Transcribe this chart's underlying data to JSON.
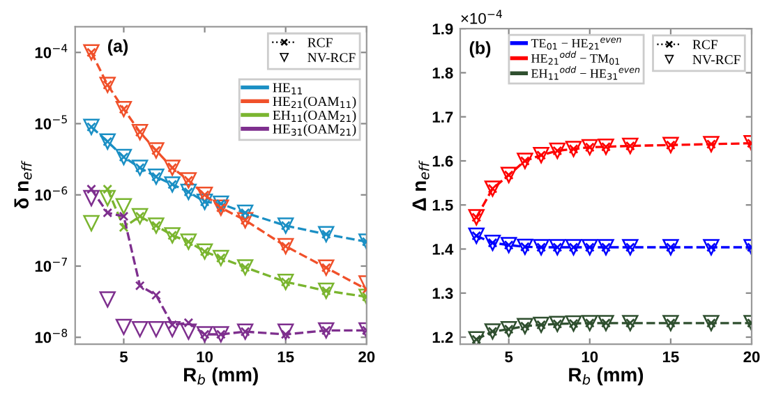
{
  "chart_data": [
    {
      "type": "line",
      "title": "(a)",
      "xlabel": "R$_{b}$ (mm)",
      "ylabel": "δ n$_{eff}$",
      "log": "y",
      "x": [
        3,
        4,
        5,
        6,
        7,
        8,
        9,
        10,
        11,
        12.5,
        15,
        17.5,
        20
      ],
      "xlim": [
        2,
        20
      ],
      "xticks": [
        5,
        10,
        15,
        20
      ],
      "ylim": [
        8e-09,
        0.00023
      ],
      "yticks": [
        {
          "value": 1e-08,
          "label": "10$^{−8}$"
        },
        {
          "value": 1e-07,
          "label": "10$^{−7}$"
        },
        {
          "value": 1e-06,
          "label": "10$^{−6}$"
        },
        {
          "value": 1e-05,
          "label": "10$^{−5}$"
        },
        {
          "value": 0.0001,
          "label": "10$^{−4}$"
        }
      ],
      "legend": "top right",
      "annotations": [
        "RCF",
        "NV-RCF"
      ],
      "series": [
        {
          "name": "HE$_{11}$",
          "marker": "cross",
          "line_style": "dashed",
          "color": "#1a8fc4",
          "values": [
            9e-06,
            5.6e-06,
            3.4e-06,
            2.4e-06,
            1.8e-06,
            1.4e-06,
            1.1e-06,
            8e-07,
            7.5e-07,
            5.6e-07,
            3.7e-07,
            2.8e-07,
            2.2e-07
          ]
        },
        {
          "name": "HE$_{21}$(OAM$_{11}$)",
          "marker": "cross",
          "line_style": "dashed",
          "color": "#f0502a",
          "values": [
            0.0001,
            3.5e-05,
            1.6e-05,
            7.6e-06,
            4.2e-06,
            2.4e-06,
            1.6e-06,
            1e-06,
            6.6e-07,
            4.4e-07,
            1.9e-07,
            9.5e-08,
            4.7e-08
          ]
        },
        {
          "name": "EH$_{11}$(OAM$_{21}$)",
          "marker": "cross",
          "line_style": "dashed",
          "color": "#7ab52f",
          "values": [
            null,
            1.2e-06,
            3.5e-07,
            5e-07,
            3.7e-07,
            2.7e-07,
            2.2e-07,
            1.6e-07,
            1.3e-07,
            9.6e-08,
            6e-08,
            4.5e-08,
            3.7e-08
          ]
        },
        {
          "name": "HE$_{31}$(OAM$_{21}$)",
          "marker": "cross",
          "line_style": "dashed",
          "color": "#7e2f8e",
          "values": [
            1.2e-06,
            5.6e-07,
            5e-07,
            5.3e-08,
            3.9e-08,
            1.5e-08,
            1.6e-08,
            1.1e-08,
            1.1e-08,
            1.2e-08,
            1.1e-08,
            1.25e-08,
            1.25e-08
          ]
        },
        {
          "type": "scatter",
          "marker": "triangle",
          "color": "#1a8fc4",
          "values": [
            9e-06,
            5.6e-06,
            3.4e-06,
            2.4e-06,
            1.8e-06,
            1.4e-06,
            1.1e-06,
            8e-07,
            7.5e-07,
            5.6e-07,
            3.7e-07,
            2.8e-07,
            2.2e-07
          ]
        },
        {
          "type": "scatter",
          "marker": "triangle",
          "color": "#f0502a",
          "values": [
            0.0001,
            3.5e-05,
            1.6e-05,
            7.6e-06,
            4.2e-06,
            2.4e-06,
            1.6e-06,
            1e-06,
            6.6e-07,
            4.4e-07,
            1.9e-07,
            9.5e-08,
            5.7e-08
          ]
        },
        {
          "type": "scatter",
          "marker": "triangle",
          "color": "#7ab52f",
          "values": [
            4e-07,
            9e-07,
            6.9e-07,
            5e-07,
            3.7e-07,
            2.7e-07,
            2.2e-07,
            1.6e-07,
            1.3e-07,
            9.6e-08,
            6e-08,
            4.5e-08,
            3.7e-08
          ]
        },
        {
          "type": "scatter",
          "marker": "triangle",
          "color": "#7e2f8e",
          "values": [
            9e-07,
            3.4e-08,
            1.4e-08,
            1.3e-08,
            1.3e-08,
            1.3e-08,
            1.2e-08,
            1.1e-08,
            1.1e-08,
            1.2e-08,
            1.2e-08,
            1.25e-08,
            1.25e-08
          ]
        }
      ]
    },
    {
      "type": "line",
      "title": "(b)",
      "xlabel": "R$_{b}$ (mm)",
      "ylabel": "Δ n$_{eff}$",
      "x": [
        3,
        4,
        5,
        6,
        7,
        8,
        9,
        10,
        11,
        12.5,
        15,
        17.5,
        20
      ],
      "xlim": [
        2,
        20
      ],
      "xticks": [
        5,
        10,
        15,
        20
      ],
      "ylim": [
        1.184,
        1.9
      ],
      "yticks": [
        1.2,
        1.3,
        1.4,
        1.5,
        1.6,
        1.7,
        1.8,
        1.9
      ],
      "legend": "top",
      "annotations": [
        "×10$^{−4}$",
        "RCF",
        "NV-RCF"
      ],
      "series": [
        {
          "name": "TE$_{01}$ − HE$_{21}$$^{even}$",
          "marker": "cross",
          "line_style": "dashed",
          "color": "#0000ff",
          "values": [
            1.43,
            1.414,
            1.409,
            1.405,
            1.404,
            1.404,
            1.404,
            1.404,
            1.404,
            1.404,
            1.404,
            1.404,
            1.404
          ]
        },
        {
          "name": "HE$_{21}$$^{odd}$ − TM$_{01}$",
          "marker": "cross",
          "line_style": "dashed",
          "color": "#ff0000",
          "values": [
            1.472,
            1.537,
            1.568,
            1.6,
            1.613,
            1.623,
            1.627,
            1.631,
            1.632,
            1.634,
            1.636,
            1.638,
            1.64
          ]
        },
        {
          "name": "EH$_{11}$$^{odd}$ − HE$_{31}$$^{even}$",
          "marker": "cross",
          "line_style": "dashed",
          "color": "#2f4f2f",
          "values": [
            1.195,
            1.213,
            1.218,
            1.225,
            1.228,
            1.23,
            1.231,
            1.232,
            1.232,
            1.232,
            1.232,
            1.232,
            1.232
          ]
        },
        {
          "type": "scatter",
          "marker": "triangle",
          "color": "#0000ff",
          "values": [
            1.43,
            1.414,
            1.409,
            1.405,
            1.404,
            1.404,
            1.404,
            1.404,
            1.404,
            1.404,
            1.404,
            1.404,
            1.404
          ]
        },
        {
          "type": "scatter",
          "marker": "triangle",
          "color": "#ff0000",
          "values": [
            1.472,
            1.537,
            1.568,
            1.6,
            1.613,
            1.623,
            1.627,
            1.631,
            1.632,
            1.634,
            1.636,
            1.638,
            1.64
          ]
        },
        {
          "type": "scatter",
          "marker": "triangle",
          "color": "#2f4f2f",
          "values": [
            1.195,
            1.213,
            1.218,
            1.225,
            1.228,
            1.23,
            1.231,
            1.232,
            1.232,
            1.232,
            1.232,
            1.232,
            1.232
          ]
        }
      ]
    }
  ]
}
